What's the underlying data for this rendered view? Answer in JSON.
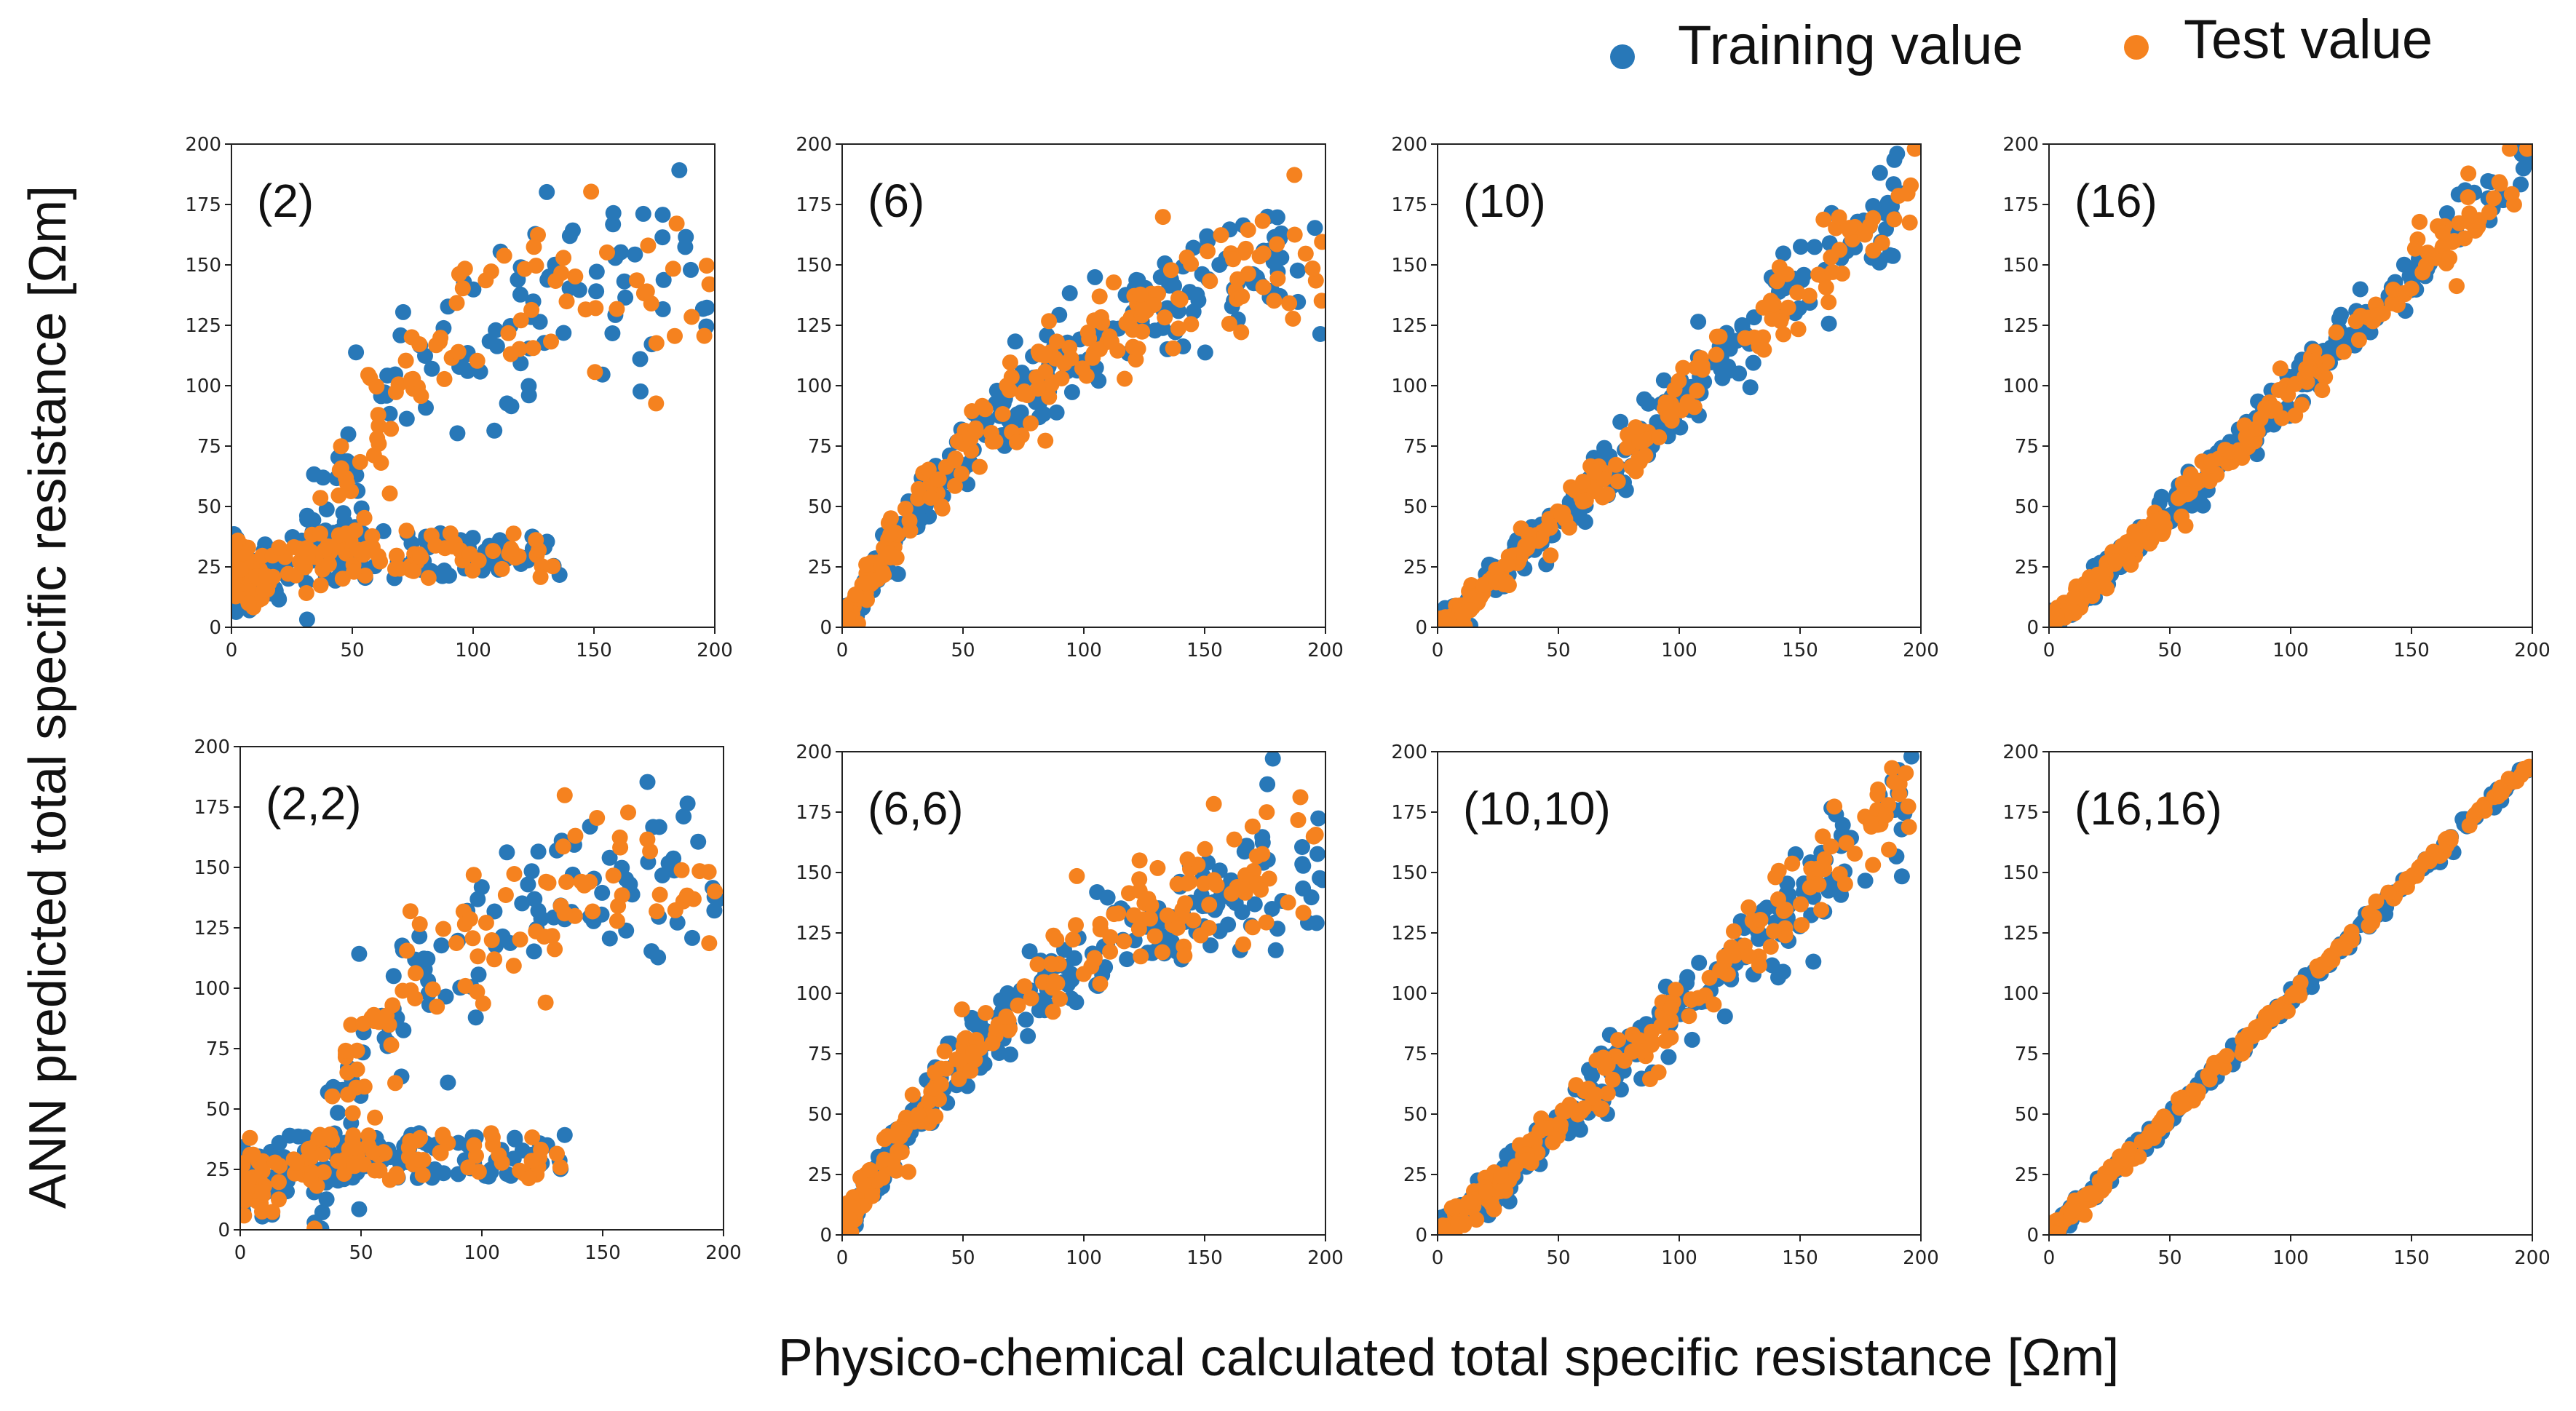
{
  "figure": {
    "xlabel": "Physico-chemical calculated total specific resistance [Ωm]",
    "ylabel": "ANN predicted total specific resistance [Ωm]",
    "legend": {
      "training": "Training value",
      "test": "Test value",
      "training_color": "#2878b8",
      "test_color": "#f5821f"
    }
  },
  "chart_data": [
    {
      "type": "scatter",
      "label": "(2)",
      "xlim": [
        0,
        200
      ],
      "ylim": [
        0,
        200
      ],
      "xticks": [
        "0",
        "50",
        "100",
        "150",
        "200"
      ],
      "yticks": [
        "0",
        "25",
        "50",
        "75",
        "100",
        "125",
        "150",
        "175",
        "200"
      ],
      "pattern": "saturate_low"
    },
    {
      "type": "scatter",
      "label": "(6)",
      "xlim": [
        0,
        200
      ],
      "ylim": [
        0,
        200
      ],
      "xticks": [
        "0",
        "50",
        "100",
        "150",
        "200"
      ],
      "yticks": [
        "0",
        "25",
        "50",
        "75",
        "100",
        "125",
        "150",
        "175",
        "200"
      ],
      "pattern": "curved"
    },
    {
      "type": "scatter",
      "label": "(10)",
      "xlim": [
        0,
        200
      ],
      "ylim": [
        0,
        200
      ],
      "xticks": [
        "0",
        "50",
        "100",
        "150",
        "200"
      ],
      "yticks": [
        "0",
        "25",
        "50",
        "75",
        "100",
        "125",
        "150",
        "175",
        "200"
      ],
      "pattern": "near_linear"
    },
    {
      "type": "scatter",
      "label": "(16)",
      "xlim": [
        0,
        200
      ],
      "ylim": [
        0,
        200
      ],
      "xticks": [
        "0",
        "50",
        "100",
        "150",
        "200"
      ],
      "yticks": [
        "0",
        "25",
        "50",
        "75",
        "100",
        "125",
        "150",
        "175",
        "200"
      ],
      "pattern": "linear"
    },
    {
      "type": "scatter",
      "label": "(2,2)",
      "xlim": [
        0,
        200
      ],
      "ylim": [
        0,
        200
      ],
      "xticks": [
        "0",
        "50",
        "100",
        "150",
        "200"
      ],
      "yticks": [
        "0",
        "25",
        "50",
        "75",
        "100",
        "125",
        "150",
        "175",
        "200"
      ],
      "pattern": "saturate_low"
    },
    {
      "type": "scatter",
      "label": "(6,6)",
      "xlim": [
        0,
        200
      ],
      "ylim": [
        0,
        200
      ],
      "xticks": [
        "0",
        "50",
        "100",
        "150",
        "200"
      ],
      "yticks": [
        "0",
        "25",
        "50",
        "75",
        "100",
        "125",
        "150",
        "175",
        "200"
      ],
      "pattern": "curved"
    },
    {
      "type": "scatter",
      "label": "(10,10)",
      "xlim": [
        0,
        200
      ],
      "ylim": [
        0,
        200
      ],
      "xticks": [
        "0",
        "50",
        "100",
        "150",
        "200"
      ],
      "yticks": [
        "0",
        "25",
        "50",
        "75",
        "100",
        "125",
        "150",
        "175",
        "200"
      ],
      "pattern": "near_linear"
    },
    {
      "type": "scatter",
      "label": "(16,16)",
      "xlim": [
        0,
        200
      ],
      "ylim": [
        0,
        200
      ],
      "xticks": [
        "0",
        "50",
        "100",
        "150",
        "200"
      ],
      "yticks": [
        "0",
        "25",
        "50",
        "75",
        "100",
        "125",
        "150",
        "175",
        "200"
      ],
      "pattern": "tight_linear"
    }
  ]
}
